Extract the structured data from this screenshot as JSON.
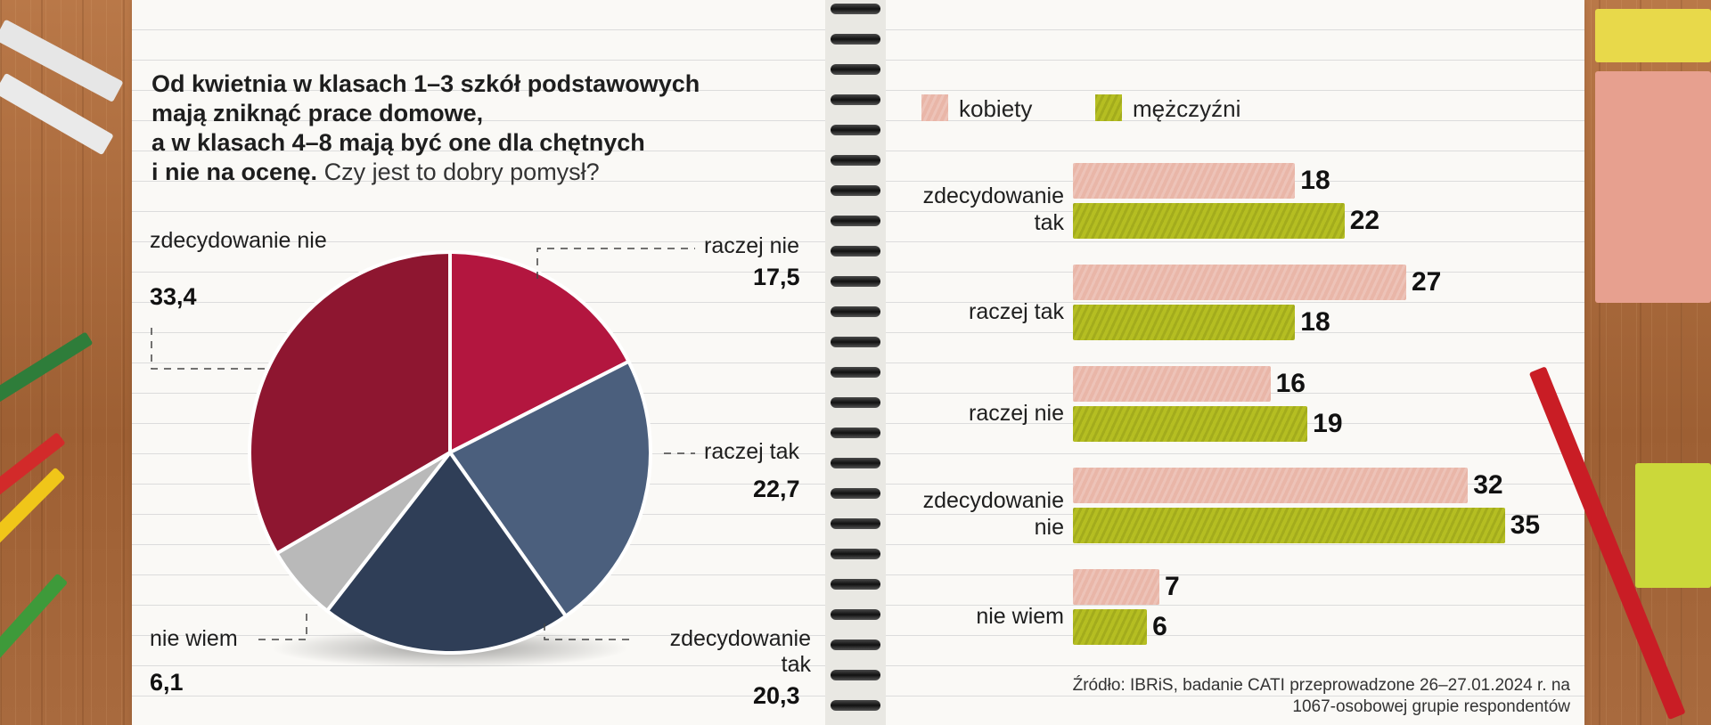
{
  "title": {
    "bold_lines": [
      "Od kwietnia w klasach 1–3 szkół podstawowych",
      "mają zniknąć prace domowe,",
      "a w klasach 4–8 mają być one dla chętnych",
      "i nie na ocenę."
    ],
    "question": "Czy jest to dobry pomysł?"
  },
  "pie": {
    "labels": {
      "zdecydowanie_nie": "zdecydowanie nie",
      "raczej_nie": "raczej nie",
      "raczej_tak": "raczej tak",
      "zdecydowanie_tak": "zdecydowanie tak",
      "nie_wiem": "nie wiem"
    },
    "values_text": {
      "zdecydowanie_nie": "33,4",
      "raczej_nie": "17,5",
      "raczej_tak": "22,7",
      "zdecydowanie_tak": "20,3",
      "nie_wiem": "6,1"
    }
  },
  "bars": {
    "legend": {
      "female": "kobiety",
      "male": "mężczyźni"
    },
    "categories": [
      "zdecydowanie tak",
      "raczej tak",
      "raczej nie",
      "zdecydowanie nie",
      "nie wiem"
    ]
  },
  "source": {
    "line1": "Źródło: IBRiS, badanie CATI przeprowadzone 26–27.01.2024 r. na",
    "line2": "1067-osobowej grupie respondentów"
  },
  "colors": {
    "zdecydowanie_nie": "#8e1630",
    "raczej_nie": "#b3163f",
    "raczej_tak": "#4b5f7d",
    "zdecydowanie_tak": "#2f3e57",
    "nie_wiem": "#b9b9b9",
    "female": "#e9b6a8",
    "male": "#b5be22"
  },
  "chart_data": [
    {
      "type": "pie",
      "categories": [
        "zdecydowanie nie",
        "raczej nie",
        "raczej tak",
        "zdecydowanie tak",
        "nie wiem"
      ],
      "values": [
        33.4,
        17.5,
        22.7,
        20.3,
        6.1
      ],
      "slice_order_clockwise_from_top": [
        "raczej nie",
        "raczej tak",
        "zdecydowanie tak",
        "nie wiem",
        "zdecydowanie nie"
      ]
    },
    {
      "type": "bar",
      "orientation": "horizontal",
      "categories": [
        "zdecydowanie tak",
        "raczej tak",
        "raczej nie",
        "zdecydowanie nie",
        "nie wiem"
      ],
      "series": [
        {
          "name": "kobiety",
          "values": [
            18,
            27,
            16,
            32,
            7
          ]
        },
        {
          "name": "mężczyźni",
          "values": [
            22,
            18,
            19,
            35,
            6
          ]
        }
      ],
      "xlim": [
        0,
        35
      ],
      "grid": false,
      "legend": "top"
    }
  ]
}
